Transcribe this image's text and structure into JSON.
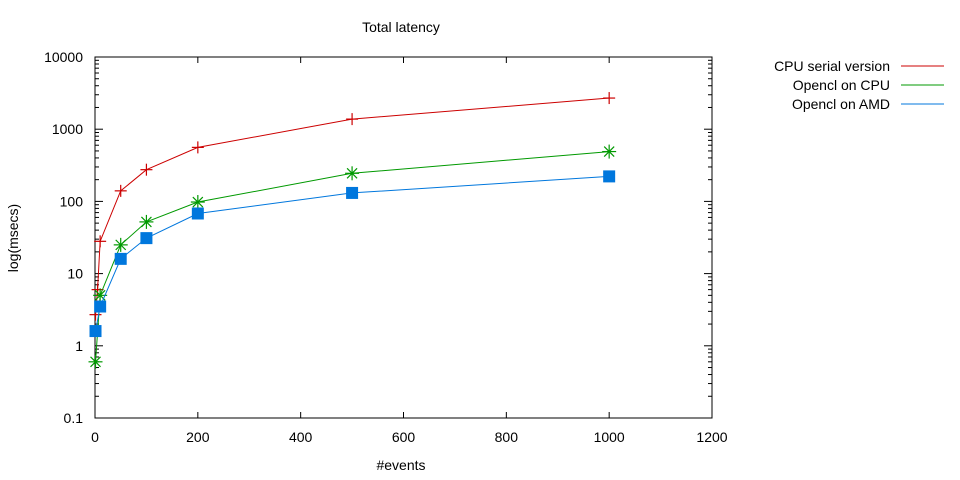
{
  "chart_data": {
    "type": "line",
    "title": "Total latency",
    "xlabel": "#events",
    "ylabel": "log(msecs)",
    "xlim": [
      0,
      1200
    ],
    "ylim": [
      0.1,
      10000
    ],
    "yscale": "log",
    "grid": false,
    "legend_position": "top-right-outside",
    "x_ticks": [
      0,
      200,
      400,
      600,
      800,
      1000,
      1200
    ],
    "y_ticks": [
      0.1,
      1,
      10,
      100,
      1000,
      10000
    ],
    "x_tick_labels": [
      "0",
      "200",
      "400",
      "600",
      "800",
      "1000",
      "1200"
    ],
    "y_tick_labels": [
      "0.1",
      "1",
      "10",
      "100",
      "1000",
      "10000"
    ],
    "series": [
      {
        "name": "CPU serial version",
        "color": "#cc0000",
        "marker": "plus",
        "x": [
          1,
          5,
          10,
          50,
          100,
          200,
          500,
          1000
        ],
        "y": [
          2.7,
          6,
          28,
          140,
          275,
          560,
          1380,
          2700
        ]
      },
      {
        "name": "Opencl on CPU",
        "color": "#009900",
        "marker": "star",
        "x": [
          1,
          10,
          50,
          100,
          200,
          500,
          1000
        ],
        "y": [
          0.6,
          5,
          25,
          52,
          98,
          245,
          490
        ]
      },
      {
        "name": "Opencl on AMD",
        "color": "#0077dd",
        "marker": "square",
        "x": [
          1,
          10,
          50,
          100,
          200,
          500,
          1000
        ],
        "y": [
          1.6,
          3.5,
          16,
          31,
          68,
          131,
          222
        ]
      }
    ]
  }
}
